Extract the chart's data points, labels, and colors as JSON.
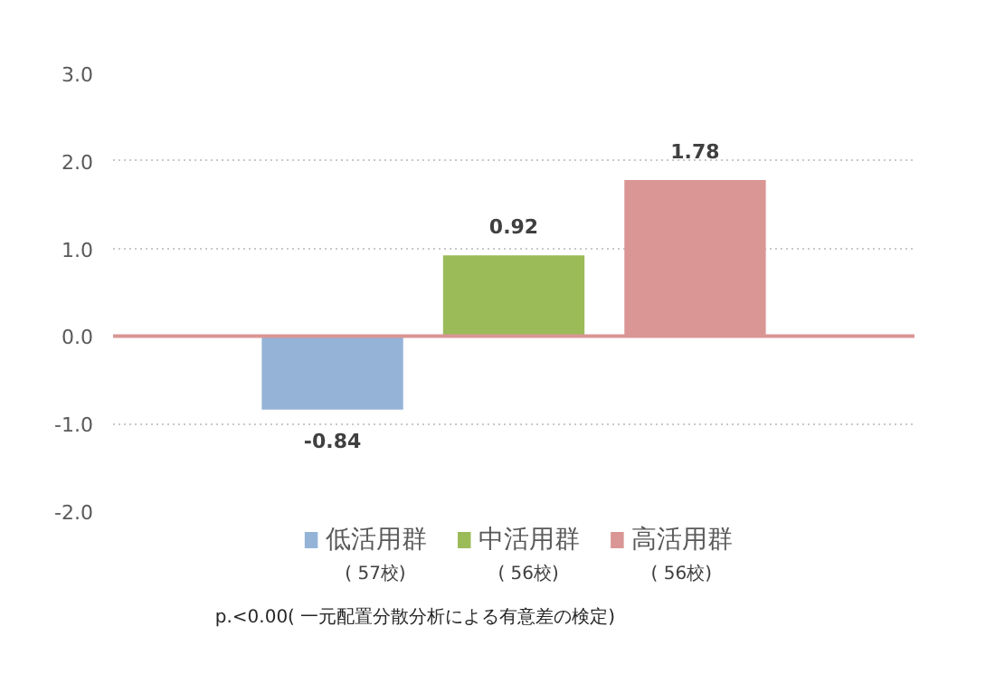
{
  "chart_data": {
    "type": "bar",
    "categories": [
      null
    ],
    "series": [
      {
        "name": "低活用群\n( 57校)",
        "color": "#95b3d7",
        "values": [
          -0.84
        ]
      },
      {
        "name": "中活用群\n( 56校)",
        "color": "#9bbb59",
        "values": [
          0.92
        ]
      },
      {
        "name": "高活用群\n( 56校)",
        "color": "#d99694",
        "values": [
          1.78
        ]
      }
    ],
    "ylim": [
      -2,
      3
    ],
    "yticks": [
      {
        "value": -2,
        "label": "-2.0"
      },
      {
        "value": -1,
        "label": "-1.0"
      },
      {
        "value": 0,
        "label": "0.0"
      },
      {
        "value": 1,
        "label": "1.0"
      },
      {
        "value": 2,
        "label": "2.0"
      },
      {
        "value": 3,
        "label": "3.0"
      }
    ],
    "ref_lines": [
      {
        "axis": "y",
        "value": 0,
        "color": "#d99694"
      }
    ],
    "grid": "y",
    "legend": "bottom",
    "data_labels": true,
    "tick_labels": "y",
    "annotations": [
      "p.<0.00( 一元配置分散分析による有意差の検定)"
    ]
  }
}
